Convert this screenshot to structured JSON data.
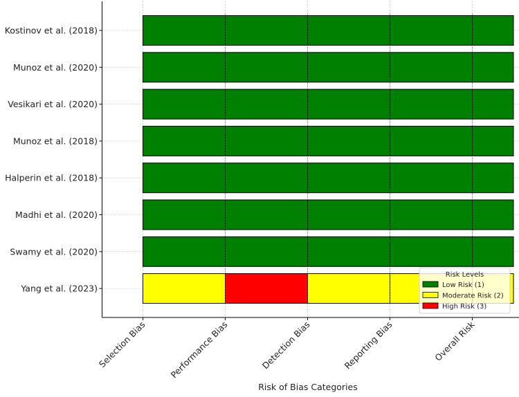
{
  "chart_data": {
    "type": "heatmap",
    "title": "",
    "xlabel": "Risk of Bias Categories",
    "ylabel": "",
    "categories": [
      "Selection Bias",
      "Performance Bias",
      "Detection Bias",
      "Reporting Bias",
      "Overall Risk"
    ],
    "studies": [
      "Kostinov et al. (2018)",
      "Munoz et al. (2020)",
      "Vesikari et al. (2020)",
      "Munoz et al. (2018)",
      "Halperin et al. (2018)",
      "Madhi et al. (2020)",
      "Swamy et al. (2020)",
      "Yang et al. (2023)"
    ],
    "values": [
      [
        1,
        1,
        1,
        1,
        1
      ],
      [
        1,
        1,
        1,
        1,
        1
      ],
      [
        1,
        1,
        1,
        1,
        1
      ],
      [
        1,
        1,
        1,
        1,
        1
      ],
      [
        1,
        1,
        1,
        1,
        1
      ],
      [
        1,
        1,
        1,
        1,
        1
      ],
      [
        1,
        1,
        1,
        1,
        1
      ],
      [
        2,
        3,
        2,
        2,
        2
      ]
    ],
    "legend": {
      "title": "Risk Levels",
      "placement": "bottom-right",
      "entries": [
        {
          "label": "Low Risk (1)",
          "value": 1,
          "color": "#008000"
        },
        {
          "label": "Moderate Risk (2)",
          "value": 2,
          "color": "#ffff00"
        },
        {
          "label": "High Risk (3)",
          "value": 3,
          "color": "#ff0000"
        }
      ]
    },
    "grid": true
  }
}
